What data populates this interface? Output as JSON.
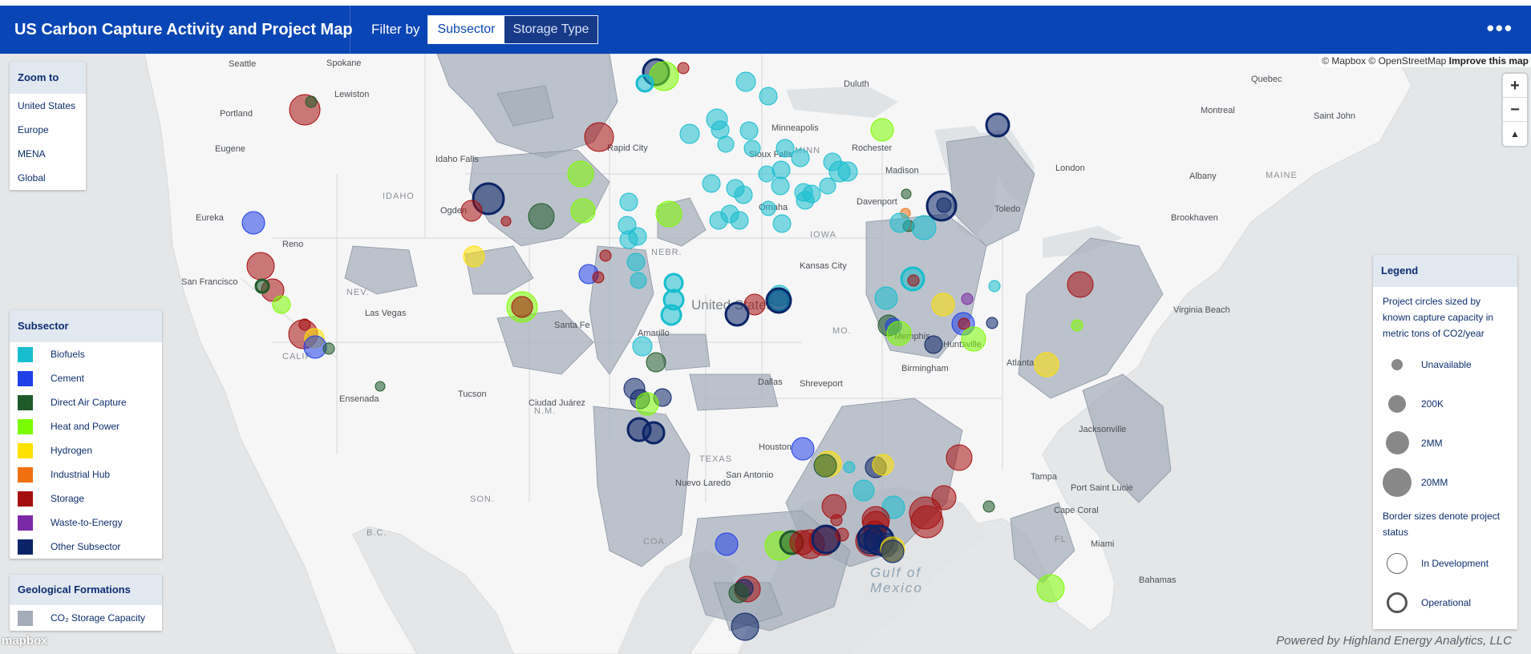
{
  "header": {
    "title": "US Carbon Capture Activity and Project Map",
    "filter_label": "Filter by",
    "filters": [
      {
        "label": "Subsector",
        "active": true
      },
      {
        "label": "Storage Type",
        "active": false
      }
    ],
    "more_label": "•••"
  },
  "attribution": {
    "text": "© Mapbox © OpenStreetMap",
    "improve": "Improve this map"
  },
  "nav": {
    "zoom_in": "+",
    "zoom_out": "−",
    "compass": "▲"
  },
  "zoom_panel": {
    "title": "Zoom to",
    "items": [
      "United States",
      "Europe",
      "MENA",
      "Global"
    ]
  },
  "subsector_panel": {
    "title": "Subsector",
    "items": [
      {
        "label": "Biofuels",
        "color": "#17becf"
      },
      {
        "label": "Cement",
        "color": "#1f3fe8"
      },
      {
        "label": "Direct Air Capture",
        "color": "#1e5a2a"
      },
      {
        "label": "Heat and Power",
        "color": "#7cfc00"
      },
      {
        "label": "Hydrogen",
        "color": "#ffe100"
      },
      {
        "label": "Industrial Hub",
        "color": "#f07010"
      },
      {
        "label": "Storage",
        "color": "#a50f0f"
      },
      {
        "label": "Waste-to-Energy",
        "color": "#7b2aa6"
      },
      {
        "label": "Other Subsector",
        "color": "#0b2467"
      }
    ]
  },
  "geo_panel": {
    "title": "Geological Formations",
    "item": {
      "label": "CO₂ Storage Capacity",
      "color": "#a4acb9"
    }
  },
  "legend_panel": {
    "title": "Legend",
    "size_desc": "Project circles sized by known capture capacity in metric tons of CO2/year",
    "sizes": [
      "Unavailable",
      "200K",
      "2MM",
      "20MM"
    ],
    "border_desc": "Border sizes denote project status",
    "statuses": [
      "In Development",
      "Operational"
    ]
  },
  "map_labels": {
    "country": "United States",
    "gulf": "Gulf of",
    "gulf2": "Mexico",
    "states": [
      "IDAHO",
      "NEV.",
      "CALIF",
      "N.M.",
      "TEXAS",
      "NEBR.",
      "MINN",
      "MO.",
      "IOWA",
      "B.C.",
      "SON.",
      "COA.",
      "MAINE",
      "FL"
    ],
    "cities": [
      "Seattle",
      "Spokane",
      "Portland",
      "Lewiston",
      "Eugene",
      "Idaho Falls",
      "Rapid City",
      "Duluth",
      "Minneapolis",
      "Sioux Falls",
      "Rochester",
      "Madison",
      "Omaha",
      "Davenport",
      "Eureka",
      "Reno",
      "Ogden",
      "San Francisco",
      "Las Vegas",
      "Santa Fe",
      "Amarillo",
      "Tucson",
      "Ciudad Juárez",
      "Ensenada",
      "Dallas",
      "Shreveport",
      "Houston",
      "San Antonio",
      "Nuevo Laredo",
      "Kansas City",
      "Memphis",
      "Huntsville",
      "Atlanta",
      "Birmingham",
      "Jacksonville",
      "Tampa",
      "Port Saint Lucie",
      "Cape Coral",
      "Miami",
      "Bahamas",
      "Virginia Beach",
      "Brookhaven",
      "Albany",
      "Montreal",
      "Quebec",
      "Saint John",
      "London",
      "Toledo"
    ]
  },
  "footer": {
    "mapbox": "mapbox",
    "powered": "Powered by Highland Energy Analytics, LLC"
  },
  "marker_colors": {
    "biofuels": "#17becf",
    "cement": "#1f3fe8",
    "dac": "#1e5a2a",
    "heat": "#7cfc00",
    "hydrogen": "#ffe100",
    "hub": "#f07010",
    "storage": "#a50f0f",
    "waste": "#7b2aa6",
    "other": "#0b2467"
  }
}
